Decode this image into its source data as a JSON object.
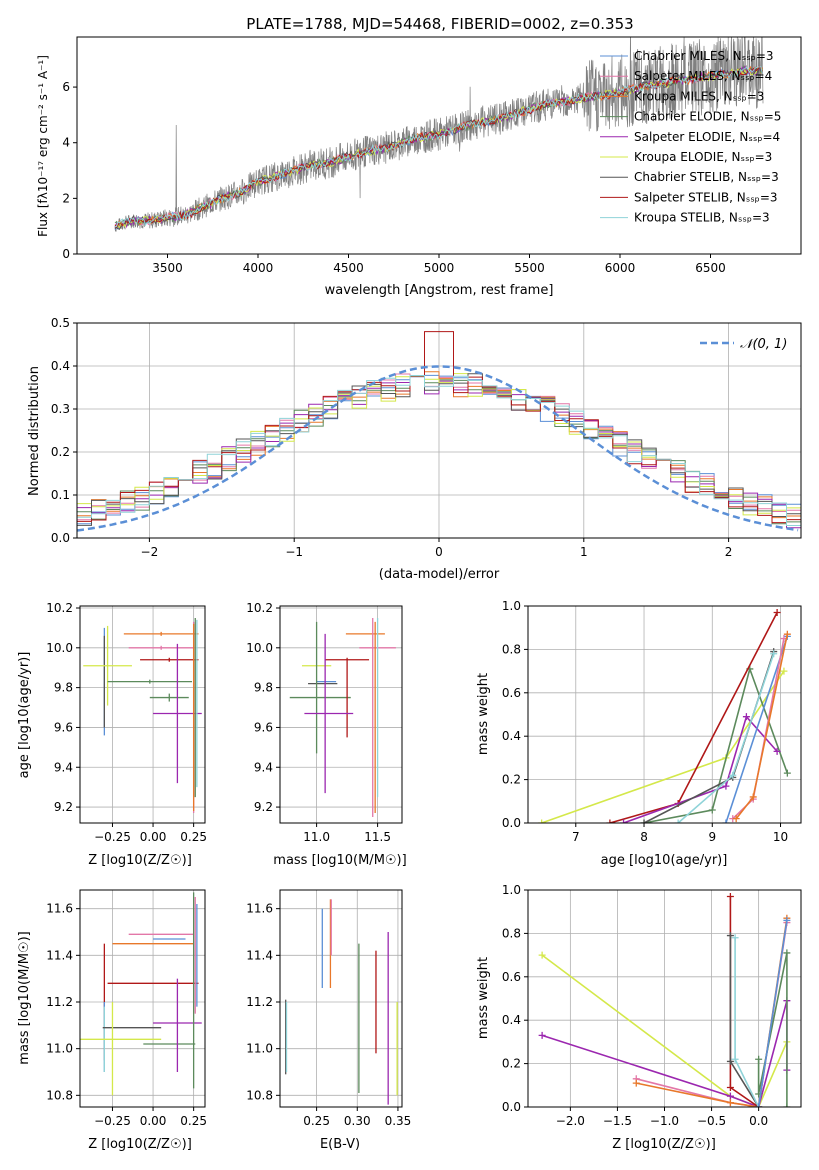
{
  "figure_title": "PLATE=1788, MJD=54468, FIBERID=0002, z=0.353",
  "chart_data": [
    {
      "id": "spectrum",
      "type": "line",
      "xlabel": "wavelength [Angstrom, rest frame]",
      "ylabel": "Flux [fλ10⁻¹⁷ erg cm⁻² s⁻¹ A⁻¹]",
      "xlim": [
        3000,
        7000
      ],
      "ylim": [
        0,
        7.8
      ],
      "xticks": [
        3500,
        4000,
        4500,
        5000,
        5500,
        6000,
        6500
      ],
      "yticks": [
        0,
        2,
        4,
        6
      ],
      "grid": false,
      "legend_position": "top-right",
      "observed": {
        "x": [
          3210,
          3300,
          3400,
          3500,
          3600,
          3700,
          3800,
          3900,
          4000,
          4100,
          4200,
          4300,
          4400,
          4500,
          4600,
          4700,
          4800,
          4900,
          5000,
          5100,
          5200,
          5300,
          5400,
          5500,
          5600,
          5700,
          5800,
          5900,
          6000,
          6100,
          6200,
          6300,
          6400,
          6500,
          6600,
          6700,
          6790
        ],
        "y": [
          1.0,
          1.2,
          1.2,
          1.3,
          1.4,
          1.7,
          2.0,
          2.2,
          2.6,
          2.8,
          3.0,
          3.2,
          3.3,
          3.5,
          3.7,
          3.8,
          4.0,
          4.2,
          4.3,
          4.5,
          4.7,
          4.8,
          5.0,
          5.2,
          5.4,
          5.5,
          5.6,
          5.7,
          5.8,
          6.0,
          6.1,
          6.2,
          6.3,
          6.4,
          6.5,
          6.6,
          6.6
        ]
      },
      "series": [
        {
          "name": "Chabrier MILES, N_SSP=3",
          "color": "#5b8fd6"
        },
        {
          "name": "Salpeter MILES, N_SSP=4",
          "color": "#e377a8"
        },
        {
          "name": "Kroupa MILES, N_SSP=3",
          "color": "#e8782a"
        },
        {
          "name": "Chabrier ELODIE, N_SSP=5",
          "color": "#5c8a5c"
        },
        {
          "name": "Salpeter ELODIE, N_SSP=4",
          "color": "#9b27af"
        },
        {
          "name": "Kroupa ELODIE, N_SSP=3",
          "color": "#d4e84a"
        },
        {
          "name": "Chabrier STELIB, N_SSP=3",
          "color": "#555555"
        },
        {
          "name": "Salpeter STELIB, N_SSP=3",
          "color": "#b01818"
        },
        {
          "name": "Kroupa STELIB, N_SSP=3",
          "color": "#8fd3d8"
        }
      ]
    },
    {
      "id": "residuals",
      "type": "line",
      "xlabel": "(data-model)/error",
      "ylabel": "Normed distribution",
      "xlim": [
        -2.5,
        2.5
      ],
      "ylim": [
        0,
        0.5
      ],
      "xticks": [
        -2,
        -1,
        0,
        1,
        2
      ],
      "yticks": [
        0.0,
        0.1,
        0.2,
        0.3,
        0.4,
        0.5
      ],
      "grid": true,
      "legend_position": "top-right",
      "legend": "𝒩(0, 1)",
      "gaussian_color": "#5b8fd6"
    },
    {
      "id": "age_vs_Z",
      "type": "scatter",
      "xlabel": "Z [log10(Z/Z☉)]",
      "ylabel": "age  [log10(age/yr)]",
      "xlim": [
        -0.45,
        0.32
      ],
      "ylim": [
        9.12,
        10.21
      ],
      "xticks": [
        -0.25,
        0.0,
        0.25
      ],
      "yticks": [
        9.2,
        9.4,
        9.6,
        9.8,
        10.0,
        10.2
      ],
      "points": [
        {
          "x": -0.3,
          "y": 9.83,
          "xerr": 0.0,
          "yerr": 0.27,
          "color": "#5b8fd6"
        },
        {
          "x": -0.3,
          "y": 9.83,
          "xerr": 0.0,
          "yerr": 0.23,
          "color": "#555555"
        },
        {
          "x": -0.28,
          "y": 9.91,
          "xerr": 0.15,
          "yerr": 0.2,
          "color": "#d4e84a"
        },
        {
          "x": -0.02,
          "y": 9.83,
          "xerr": 0.26,
          "yerr": 0.01,
          "color": "#5c8a5c"
        },
        {
          "x": 0.1,
          "y": 9.75,
          "xerr": 0.12,
          "yerr": 0.02,
          "color": "#5c8a5c"
        },
        {
          "x": 0.05,
          "y": 10.0,
          "xerr": 0.2,
          "yerr": 0.01,
          "color": "#e377a8"
        },
        {
          "x": 0.05,
          "y": 10.07,
          "xerr": 0.23,
          "yerr": 0.01,
          "color": "#e8782a"
        },
        {
          "x": 0.1,
          "y": 9.94,
          "xerr": 0.18,
          "yerr": 0.01,
          "color": "#b01818"
        },
        {
          "x": 0.15,
          "y": 9.67,
          "xerr": 0.15,
          "yerr": 0.35,
          "color": "#9b27af"
        },
        {
          "x": 0.25,
          "y": 9.65,
          "xerr": 0.0,
          "yerr": 0.48,
          "color": "#e377a8"
        },
        {
          "x": 0.25,
          "y": 9.65,
          "xerr": 0.0,
          "yerr": 0.47,
          "color": "#e8782a"
        },
        {
          "x": 0.26,
          "y": 9.7,
          "xerr": 0.0,
          "yerr": 0.45,
          "color": "#5c8a5c"
        },
        {
          "x": 0.27,
          "y": 9.72,
          "xerr": 0.0,
          "yerr": 0.42,
          "color": "#8fd3d8"
        }
      ]
    },
    {
      "id": "age_vs_mass",
      "type": "scatter",
      "xlabel": "mass [log10(M/M☉)]",
      "ylabel": "",
      "xlim": [
        10.7,
        11.7
      ],
      "ylim": [
        9.12,
        10.21
      ],
      "xticks": [
        11.0,
        11.5
      ],
      "yticks": [
        9.2,
        9.4,
        9.6,
        9.8,
        10.0,
        10.2
      ],
      "points": [
        {
          "x": 11.08,
          "y": 9.83,
          "xerr": 0.08,
          "yerr": 0.0,
          "color": "#5b8fd6"
        },
        {
          "x": 11.05,
          "y": 9.82,
          "xerr": 0.12,
          "yerr": 0.0,
          "color": "#555555"
        },
        {
          "x": 11.0,
          "y": 9.91,
          "xerr": 0.12,
          "yerr": 0.0,
          "color": "#d4e84a"
        },
        {
          "x": 11.03,
          "y": 9.75,
          "xerr": 0.25,
          "yerr": 0.0,
          "color": "#5c8a5c"
        },
        {
          "x": 11.0,
          "y": 9.8,
          "xerr": 0.0,
          "yerr": 0.33,
          "color": "#5c8a5c"
        },
        {
          "x": 11.4,
          "y": 10.07,
          "xerr": 0.16,
          "yerr": 0.0,
          "color": "#e8782a"
        },
        {
          "x": 11.5,
          "y": 10.0,
          "xerr": 0.15,
          "yerr": 0.0,
          "color": "#e377a8"
        },
        {
          "x": 11.25,
          "y": 9.94,
          "xerr": 0.18,
          "yerr": 0.0,
          "color": "#b01818"
        },
        {
          "x": 11.25,
          "y": 9.75,
          "xerr": 0.0,
          "yerr": 0.2,
          "color": "#b01818"
        },
        {
          "x": 11.1,
          "y": 9.67,
          "xerr": 0.2,
          "yerr": 0.0,
          "color": "#9b27af"
        },
        {
          "x": 11.07,
          "y": 9.67,
          "xerr": 0.0,
          "yerr": 0.4,
          "color": "#9b27af"
        },
        {
          "x": 11.46,
          "y": 9.65,
          "xerr": 0.0,
          "yerr": 0.5,
          "color": "#e377a8"
        },
        {
          "x": 11.48,
          "y": 9.65,
          "xerr": 0.0,
          "yerr": 0.48,
          "color": "#e8782a"
        },
        {
          "x": 11.5,
          "y": 9.7,
          "xerr": 0.0,
          "yerr": 0.45,
          "color": "#8fd3d8"
        }
      ]
    },
    {
      "id": "mass_weight_vs_age",
      "type": "line",
      "xlabel": "age  [log10(age/yr)]",
      "ylabel": "mass weight",
      "xlim": [
        6.3,
        10.3
      ],
      "ylim": [
        0,
        1
      ],
      "xticks": [
        7,
        8,
        9,
        10
      ],
      "yticks": [
        0.0,
        0.2,
        0.4,
        0.6,
        0.8,
        1.0
      ],
      "grid": true,
      "series": [
        {
          "color": "#d4e84a",
          "x": [
            6.5,
            9.2,
            10.05
          ],
          "y": [
            0.0,
            0.3,
            0.7
          ]
        },
        {
          "color": "#5c8a5c",
          "x": [
            8.0,
            9.0,
            9.55,
            10.1
          ],
          "y": [
            0.0,
            0.06,
            0.71,
            0.23
          ]
        },
        {
          "color": "#b01818",
          "x": [
            7.5,
            8.5,
            9.95
          ],
          "y": [
            0.0,
            0.09,
            0.97
          ]
        },
        {
          "color": "#9b27af",
          "x": [
            7.7,
            9.2,
            9.5,
            9.95
          ],
          "y": [
            0.0,
            0.17,
            0.49,
            0.33
          ]
        },
        {
          "color": "#555555",
          "x": [
            8.0,
            9.3,
            9.9
          ],
          "y": [
            0.0,
            0.21,
            0.79
          ]
        },
        {
          "color": "#5b8fd6",
          "x": [
            9.2,
            10.1
          ],
          "y": [
            0.0,
            0.86
          ]
        },
        {
          "color": "#e377a8",
          "x": [
            9.3,
            9.6,
            10.05
          ],
          "y": [
            0.02,
            0.11,
            0.85
          ]
        },
        {
          "color": "#e8782a",
          "x": [
            9.35,
            9.6,
            10.1
          ],
          "y": [
            0.02,
            0.12,
            0.87
          ]
        },
        {
          "color": "#8fd3d8",
          "x": [
            8.5,
            9.3,
            9.9
          ],
          "y": [
            0.0,
            0.22,
            0.78
          ]
        }
      ]
    },
    {
      "id": "mass_vs_Z",
      "type": "scatter",
      "xlabel": "Z [log10(Z/Z☉)]",
      "ylabel": "mass [log10(M/M☉)]",
      "xlim": [
        -0.45,
        0.32
      ],
      "ylim": [
        10.75,
        11.68
      ],
      "xticks": [
        -0.25,
        0.0,
        0.25
      ],
      "yticks": [
        10.8,
        11.0,
        11.2,
        11.4,
        11.6
      ],
      "points": [
        {
          "x": -0.3,
          "y": 11.2,
          "xerr": 0.0,
          "yerr": 0.25,
          "color": "#b01818"
        },
        {
          "x": -0.3,
          "y": 11.05,
          "xerr": 0.0,
          "yerr": 0.15,
          "color": "#5b8fd6"
        },
        {
          "x": -0.3,
          "y": 11.04,
          "xerr": 0.0,
          "yerr": 0.14,
          "color": "#8fd3d8"
        },
        {
          "x": -0.13,
          "y": 11.09,
          "xerr": 0.18,
          "yerr": 0.0,
          "color": "#555555"
        },
        {
          "x": -0.2,
          "y": 11.04,
          "xerr": 0.25,
          "yerr": 0.0,
          "color": "#d4e84a"
        },
        {
          "x": -0.25,
          "y": 11.0,
          "xerr": 0.0,
          "yerr": 0.2,
          "color": "#d4e84a"
        },
        {
          "x": 0.05,
          "y": 11.49,
          "xerr": 0.2,
          "yerr": 0.0,
          "color": "#e377a8"
        },
        {
          "x": 0.0,
          "y": 11.45,
          "xerr": 0.25,
          "yerr": 0.0,
          "color": "#e8782a"
        },
        {
          "x": 0.1,
          "y": 11.47,
          "xerr": 0.1,
          "yerr": 0.0,
          "color": "#5b8fd6"
        },
        {
          "x": 0.0,
          "y": 11.28,
          "xerr": 0.28,
          "yerr": 0.0,
          "color": "#b01818"
        },
        {
          "x": 0.15,
          "y": 11.11,
          "xerr": 0.15,
          "yerr": 0.0,
          "color": "#9b27af"
        },
        {
          "x": 0.1,
          "y": 11.02,
          "xerr": 0.16,
          "yerr": 0.0,
          "color": "#5c8a5c"
        },
        {
          "x": 0.15,
          "y": 11.1,
          "xerr": 0.0,
          "yerr": 0.2,
          "color": "#9b27af"
        },
        {
          "x": 0.25,
          "y": 11.25,
          "xerr": 0.0,
          "yerr": 0.42,
          "color": "#5c8a5c"
        },
        {
          "x": 0.26,
          "y": 11.4,
          "xerr": 0.0,
          "yerr": 0.25,
          "color": "#e377a8"
        },
        {
          "x": 0.27,
          "y": 11.4,
          "xerr": 0.0,
          "yerr": 0.22,
          "color": "#5b8fd6"
        }
      ]
    },
    {
      "id": "mass_vs_EBV",
      "type": "scatter",
      "xlabel": "E(B-V)",
      "ylabel": "",
      "xlim": [
        0.205,
        0.355
      ],
      "ylim": [
        10.75,
        11.68
      ],
      "xticks": [
        0.25,
        0.3,
        0.35
      ],
      "yticks": [
        10.8,
        11.0,
        11.2,
        11.4,
        11.6
      ],
      "points": [
        {
          "x": 0.212,
          "y": 11.05,
          "xerr": 0.0,
          "yerr": 0.16,
          "color": "#555555"
        },
        {
          "x": 0.213,
          "y": 11.05,
          "xerr": 0.0,
          "yerr": 0.15,
          "color": "#8fd3d8"
        },
        {
          "x": 0.257,
          "y": 11.43,
          "xerr": 0.0,
          "yerr": 0.17,
          "color": "#5b8fd6"
        },
        {
          "x": 0.267,
          "y": 11.45,
          "xerr": 0.0,
          "yerr": 0.19,
          "color": "#e8782a"
        },
        {
          "x": 0.268,
          "y": 11.52,
          "xerr": 0.0,
          "yerr": 0.12,
          "color": "#e377a8"
        },
        {
          "x": 0.302,
          "y": 11.13,
          "xerr": 0.0,
          "yerr": 0.32,
          "color": "#5c8a5c"
        },
        {
          "x": 0.323,
          "y": 11.2,
          "xerr": 0.0,
          "yerr": 0.22,
          "color": "#b01818"
        },
        {
          "x": 0.338,
          "y": 11.13,
          "xerr": 0.0,
          "yerr": 0.37,
          "color": "#9b27af"
        },
        {
          "x": 0.349,
          "y": 11.0,
          "xerr": 0.0,
          "yerr": 0.2,
          "color": "#d4e84a"
        }
      ]
    },
    {
      "id": "mass_weight_vs_Z",
      "type": "line",
      "xlabel": "Z [log10(Z/Z☉)]",
      "ylabel": "mass weight",
      "xlim": [
        -2.45,
        0.45
      ],
      "ylim": [
        0,
        1
      ],
      "xticks": [
        -2.0,
        -1.5,
        -1.0,
        -0.5,
        0.0
      ],
      "yticks": [
        0.0,
        0.2,
        0.4,
        0.6,
        0.8,
        1.0
      ],
      "grid": true,
      "series": [
        {
          "color": "#d4e84a",
          "x": [
            -2.3,
            -0.3,
            0.0,
            0.3
          ],
          "y": [
            0.7,
            0.05,
            0.0,
            0.3
          ]
        },
        {
          "color": "#9b27af",
          "x": [
            -2.3,
            -0.3,
            0.0,
            0.3,
            0.3
          ],
          "y": [
            0.33,
            0.05,
            0.0,
            0.49,
            0.17
          ]
        },
        {
          "color": "#e377a8",
          "x": [
            -1.3,
            -0.3,
            0.0,
            0.3
          ],
          "y": [
            0.13,
            0.02,
            0.0,
            0.85
          ]
        },
        {
          "color": "#e8782a",
          "x": [
            -1.3,
            -0.3,
            0.0,
            0.3
          ],
          "y": [
            0.11,
            0.02,
            0.0,
            0.87
          ]
        },
        {
          "color": "#b01818",
          "x": [
            -0.3,
            -0.3,
            0.0
          ],
          "y": [
            0.97,
            0.09,
            0.0
          ]
        },
        {
          "color": "#555555",
          "x": [
            -0.3,
            -0.3,
            0.0
          ],
          "y": [
            0.79,
            0.21,
            0.0
          ]
        },
        {
          "color": "#8fd3d8",
          "x": [
            -0.25,
            -0.25,
            0.0
          ],
          "y": [
            0.78,
            0.22,
            0.0
          ]
        },
        {
          "color": "#5c8a5c",
          "x": [
            0.0,
            0.0,
            0.3,
            0.3
          ],
          "y": [
            0.22,
            0.06,
            0.71,
            0.0
          ]
        },
        {
          "color": "#5b8fd6",
          "x": [
            0.0,
            0.3
          ],
          "y": [
            0.0,
            0.86
          ]
        }
      ]
    }
  ]
}
